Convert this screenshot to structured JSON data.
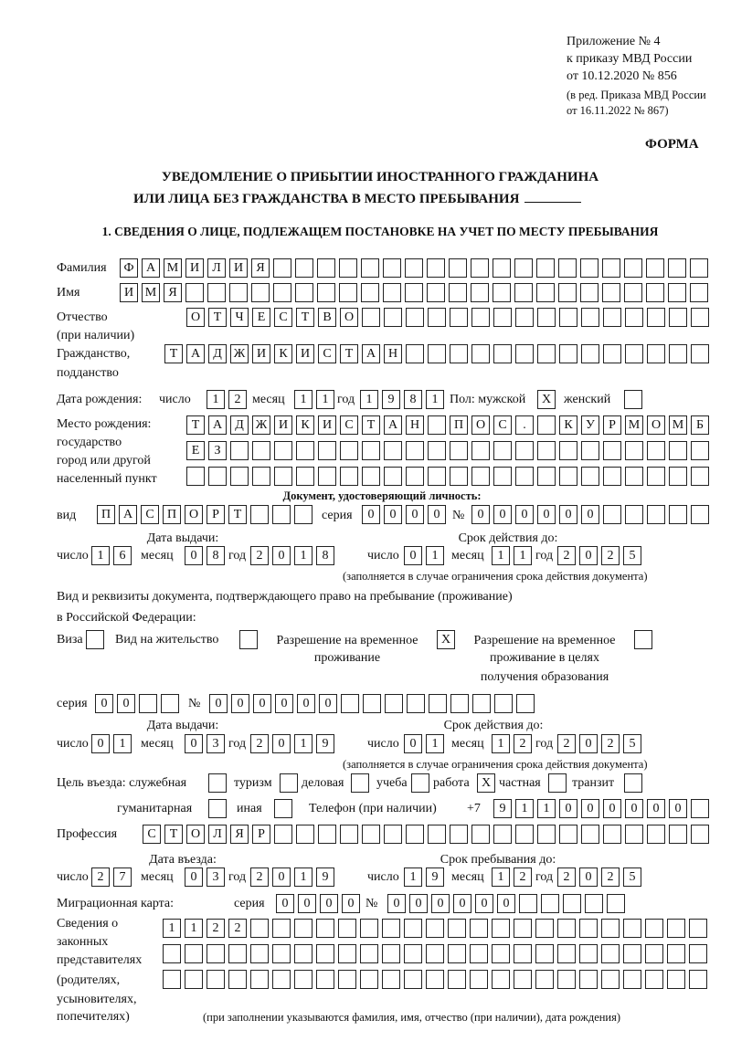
{
  "header": {
    "appendix": "Приложение № 4",
    "order": "к приказу МВД России",
    "order_date": "от 10.12.2020 № 856",
    "edition_1": "(в ред. Приказа МВД России",
    "edition_2": "от 16.11.2022 № 867)",
    "form_label": "ФОРМА",
    "title_1": "УВЕДОМЛЕНИЕ О ПРИБЫТИИ ИНОСТРАННОГО ГРАЖДАНИНА",
    "title_2": "ИЛИ ЛИЦА БЕЗ ГРАЖДАНСТВА В МЕСТО ПРЕБЫВАНИЯ",
    "section_1": "1. СВЕДЕНИЯ О ЛИЦЕ, ПОДЛЕЖАЩЕМ ПОСТАНОВКЕ НА УЧЕТ ПО МЕСТУ ПРЕБЫВАНИЯ"
  },
  "labels": {
    "surname": "Фамилия",
    "name": "Имя",
    "patronymic_1": "Отчество",
    "patronymic_2": "(при наличии)",
    "citizenship_1": "Гражданство,",
    "citizenship_2": "подданство",
    "birth_date": "Дата рождения:",
    "day": "число",
    "month": "месяц",
    "year": "год",
    "sex_male": "Пол: мужской",
    "sex_female": "женский",
    "birthplace_1": "Место рождения:",
    "birthplace_2": "государство",
    "birthplace_3": "город или другой",
    "birthplace_4": "населенный пункт",
    "id_doc": "Документ, удостоверяющий личность:",
    "kind": "вид",
    "series": "серия",
    "number": "№",
    "issue_date": "Дата выдачи:",
    "valid_until": "Срок действия до:",
    "validity_note": "(заполняется в случае ограничения срока действия документа)",
    "permit_1": "Вид и реквизиты документа, подтверждающего право на пребывание (проживание)",
    "permit_2": "в Российской Федерации:",
    "visa": "Виза",
    "residence_permit": "Вид на жительство",
    "temp_residence_1": "Разрешение на временное",
    "temp_residence_2": "проживание",
    "temp_edu_1": "Разрешение на временное",
    "temp_edu_2": "проживание в целях",
    "temp_edu_3": "получения образования",
    "purpose": "Цель въезда: служебная",
    "tourism": "туризм",
    "business": "деловая",
    "study": "учеба",
    "work": "работа",
    "private": "частная",
    "transit": "транзит",
    "humanitarian": "гуманитарная",
    "other": "иная",
    "phone": "Телефон (при наличии)",
    "phone_prefix": "+7",
    "profession": "Профессия",
    "entry_date": "Дата въезда:",
    "stay_until": "Срок пребывания до:",
    "migration_card": "Миграционная карта:",
    "reps_1": "Сведения о",
    "reps_2": "законных",
    "reps_3": "представителях",
    "reps_4": "(родителях,",
    "reps_5": "усыновителях,",
    "reps_6": "попечителях)",
    "reps_note": "(при заполнении указываются фамилия, имя, отчество (при наличии), дата рождения)"
  },
  "values": {
    "surname": "ФАМИЛИЯ",
    "name": "ИМЯ",
    "patronymic": "ОТЧЕСТВО",
    "citizenship": "ТАДЖИКИСТАН",
    "birth_day": "12",
    "birth_month": "11",
    "birth_year": "1981",
    "sex_male": "X",
    "sex_female": "",
    "birthplace_1": "ТАДЖИКИСТАН ПОС. КУРМОМБ",
    "birthplace_2": "ЕЗ",
    "birthplace_3": "",
    "id_kind": "ПАСПОРТ",
    "id_series": "0000",
    "id_number": "000000",
    "id_issue_day": "16",
    "id_issue_month": "08",
    "id_issue_year": "2018",
    "id_valid_day": "01",
    "id_valid_month": "11",
    "id_valid_year": "2025",
    "visa": "",
    "residence_permit": "",
    "temp_residence": "X",
    "temp_edu": "",
    "permit_series": "00",
    "permit_number": "000000",
    "permit_issue_day": "01",
    "permit_issue_month": "03",
    "permit_issue_year": "2019",
    "permit_valid_day": "01",
    "permit_valid_month": "12",
    "permit_valid_year": "2025",
    "purpose_official": "",
    "purpose_tourism": "",
    "purpose_business": "",
    "purpose_study": "",
    "purpose_work": "X",
    "purpose_private": "",
    "purpose_transit": "",
    "purpose_humanitarian": "",
    "purpose_other": "",
    "phone": "911000000",
    "profession": "СТОЛЯР",
    "entry_day": "27",
    "entry_month": "03",
    "entry_year": "2019",
    "stay_day": "19",
    "stay_month": "12",
    "stay_year": "2025",
    "mc_series": "0000",
    "mc_number": "000000",
    "reps_1": "1122",
    "reps_2": "",
    "reps_3": ""
  }
}
